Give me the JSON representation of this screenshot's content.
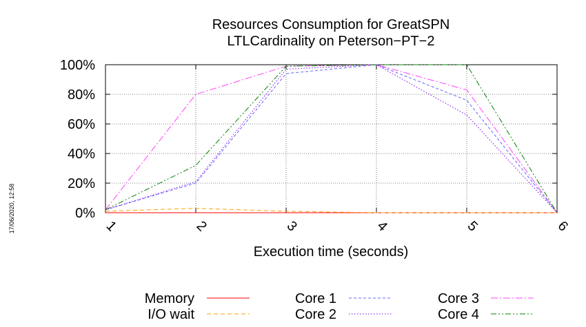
{
  "timestamp": "17/06/2020, 12:58",
  "chart_data": {
    "type": "line",
    "title": "Resources Consumption for GreatSPN",
    "subtitle": "LTLCardinality on Peterson−PT−2",
    "xlabel": "Execution time (seconds)",
    "ylabel": "",
    "x": [
      1,
      2,
      3,
      4,
      5,
      6
    ],
    "xlim": [
      1,
      6
    ],
    "ylim": [
      0,
      100
    ],
    "x_ticks": [
      "1",
      "2",
      "3",
      "4",
      "5",
      "6"
    ],
    "y_ticks": [
      "0%",
      "20%",
      "40%",
      "60%",
      "80%",
      "100%"
    ],
    "grid": true,
    "legend_position": "bottom",
    "series": [
      {
        "name": "Memory",
        "color": "#ff0000",
        "dash": "solid",
        "values": [
          0,
          0,
          0,
          0,
          0,
          0
        ]
      },
      {
        "name": "I/O wait",
        "color": "#ffa000",
        "dash": "dashed",
        "values": [
          1,
          3,
          1,
          0,
          0,
          0
        ]
      },
      {
        "name": "Core 1",
        "color": "#6060ff",
        "dash": "dashed-fine",
        "values": [
          2,
          20,
          94,
          100,
          76,
          0
        ]
      },
      {
        "name": "Core 2",
        "color": "#8000ff",
        "dash": "dotted",
        "values": [
          2,
          21,
          97,
          100,
          66,
          0
        ]
      },
      {
        "name": "Core 3",
        "color": "#ff40ff",
        "dash": "dashdot",
        "values": [
          2,
          80,
          99,
          100,
          83,
          0
        ]
      },
      {
        "name": "Core 4",
        "color": "#008000",
        "dash": "dashdotdot",
        "values": [
          2,
          32,
          99,
          100,
          100,
          0
        ]
      }
    ]
  }
}
